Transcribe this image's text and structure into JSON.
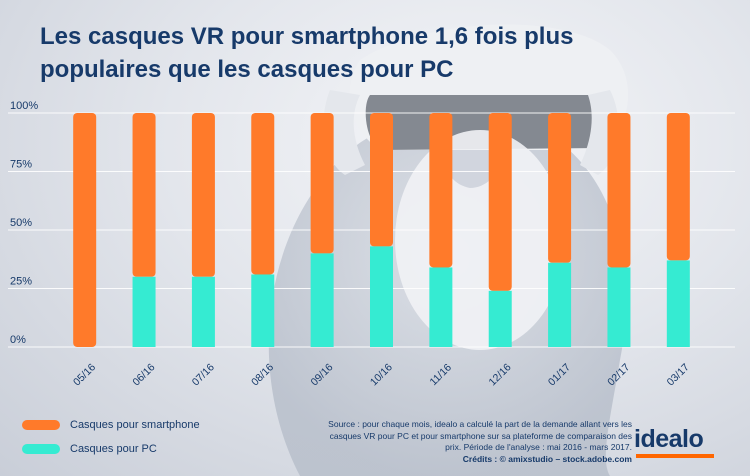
{
  "title": "Les casques VR pour smartphone 1,6 fois plus populaires que les casques pour PC",
  "legend": {
    "smartphone_label": "Casques pour smartphone",
    "pc_label": "Casques pour PC"
  },
  "source": {
    "text": "Source : pour chaque mois, idealo a calculé la part de la demande allant vers les casques VR pour PC et pour smartphone sur sa plateforme de comparaison des prix. Période de l'analyse : mai 2016 - mars 2017.",
    "credits": "Crédits : © amixstudio – stock.adobe.com"
  },
  "logo": "idealo",
  "colors": {
    "smartphone": "#ff7a2a",
    "pc": "#35ebd2",
    "axis_text": "#173a6a",
    "grid": "#ffffff",
    "brand_bar": "#ff6600"
  },
  "chart_data": {
    "type": "bar",
    "stacked": true,
    "categories": [
      "05/16",
      "06/16",
      "07/16",
      "08/16",
      "09/16",
      "10/16",
      "11/16",
      "12/16",
      "01/17",
      "02/17",
      "03/17"
    ],
    "series": [
      {
        "name": "Casques pour PC",
        "values": [
          0,
          30,
          30,
          31,
          40,
          43,
          34,
          24,
          36,
          34,
          37
        ]
      },
      {
        "name": "Casques pour smartphone",
        "values": [
          100,
          70,
          70,
          69,
          60,
          57,
          66,
          76,
          64,
          66,
          63
        ]
      }
    ],
    "ylim": [
      0,
      100
    ],
    "yticks": [
      "0%",
      "25%",
      "50%",
      "75%",
      "100%"
    ],
    "grid": true,
    "legend_position": "bottom-left"
  }
}
